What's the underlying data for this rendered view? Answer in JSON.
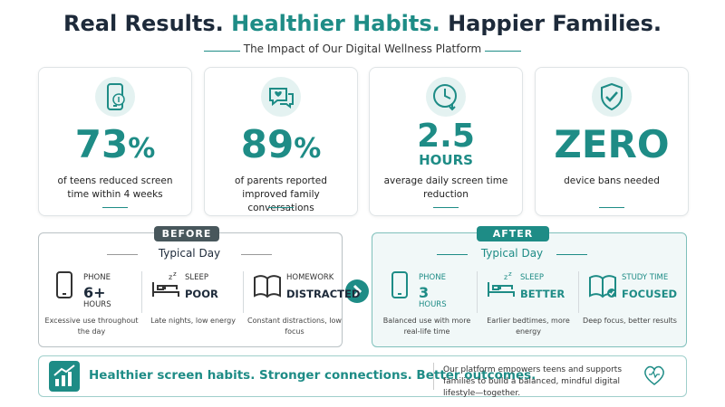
{
  "header": {
    "title": [
      "Real Results.",
      "Healthier Habits.",
      "Happier Families."
    ],
    "subtitle": "The Impact of Our Digital Wellness Platform"
  },
  "stats": [
    {
      "value": 73,
      "unit": "%",
      "description": "of teens reduced screen time within 4 weeks"
    },
    {
      "value": 89,
      "unit": "%",
      "description": "of parents reported improved family conversations"
    },
    {
      "value": 2.5,
      "unit": "HOURS",
      "description": "average daily screen time reduction"
    },
    {
      "value": "ZERO",
      "description": "device bans needed"
    }
  ],
  "before": {
    "badge": "BEFORE",
    "heading": "Typical Day",
    "items": [
      {
        "label": "PHONE",
        "value": "6+",
        "unit": "HOURS",
        "note": "Excessive use throughout the day"
      },
      {
        "label": "SLEEP",
        "value": "POOR",
        "note": "Late nights, low energy"
      },
      {
        "label": "HOMEWORK",
        "value": "DISTRACTED",
        "note": "Constant distractions, low focus"
      }
    ]
  },
  "after": {
    "badge": "AFTER",
    "heading": "Typical Day",
    "items": [
      {
        "label": "PHONE",
        "value": "3",
        "unit": "HOURS",
        "note": "Balanced use with more real-life time"
      },
      {
        "label": "SLEEP",
        "value": "BETTER",
        "note": "Earlier bedtimes, more energy"
      },
      {
        "label": "STUDY TIME",
        "value": "FOCUSED",
        "note": "Deep focus, better results"
      }
    ]
  },
  "footer": {
    "tagline": "Healthier screen habits. Stronger connections. Better outcomes.",
    "text": "Our platform empowers teens and supports families to build a balanced, mindful digital lifestyle—together."
  }
}
